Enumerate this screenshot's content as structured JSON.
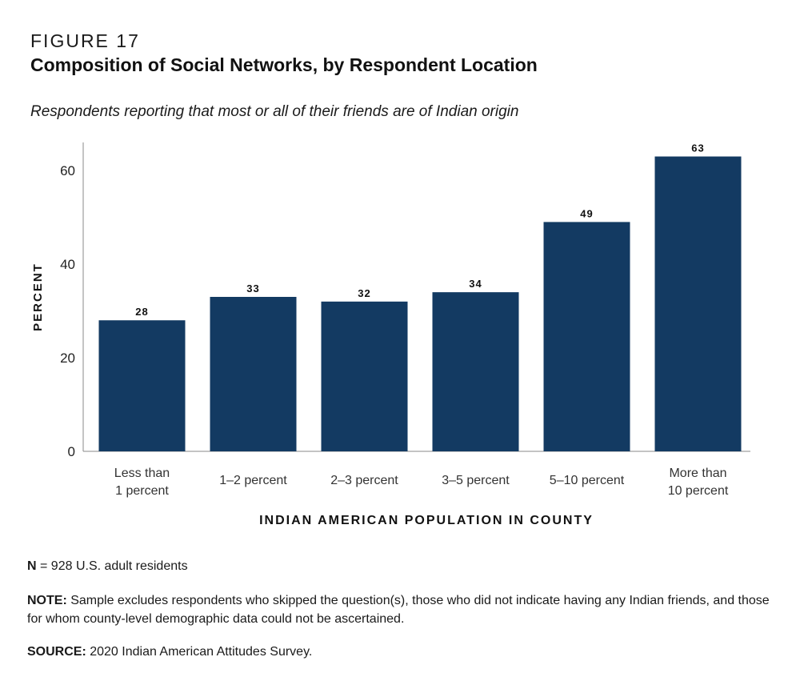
{
  "figure": {
    "label": "FIGURE 17",
    "title": "Composition of Social Networks, by Respondent Location",
    "subtitle": "Respondents reporting that most or all of their friends are of Indian origin"
  },
  "chart_data": {
    "type": "bar",
    "categories": [
      [
        "Less than",
        "1 percent"
      ],
      [
        "1–2 percent"
      ],
      [
        "2–3 percent"
      ],
      [
        "3–5 percent"
      ],
      [
        "5–10 percent"
      ],
      [
        "More than",
        "10 percent"
      ]
    ],
    "values": [
      28,
      33,
      32,
      34,
      49,
      63
    ],
    "data_labels": [
      "28",
      "33",
      "32",
      "34",
      "49",
      "63"
    ],
    "xlabel": "INDIAN AMERICAN POPULATION IN COUNTY",
    "ylabel": "PERCENT",
    "ylim": [
      0,
      66
    ],
    "yticks": [
      0,
      20,
      40,
      60
    ],
    "grid": false,
    "bar_color": "#133a62"
  },
  "notes": {
    "n_label": "N",
    "n_text": " = 928 U.S. adult residents",
    "note_label": "NOTE:",
    "note_text": " Sample excludes respondents who skipped the question(s), those who did not indicate having any Indian friends, and those for whom county-level demographic data could not be ascertained.",
    "source_label": "SOURCE:",
    "source_text": " 2020 Indian American Attitudes Survey."
  }
}
